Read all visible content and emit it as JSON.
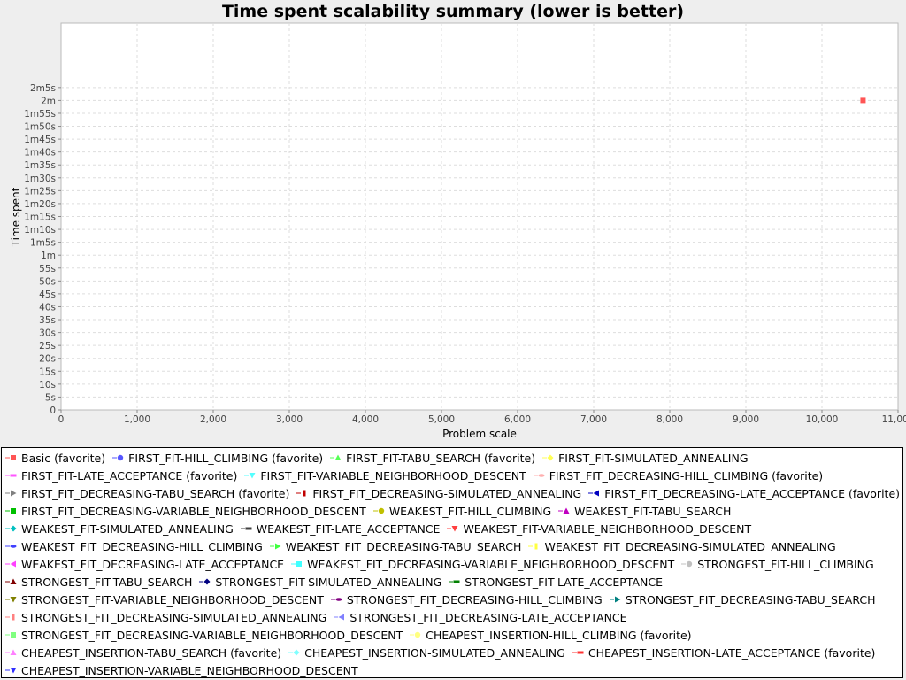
{
  "chart_data": {
    "type": "scatter",
    "title": "Time spent scalability summary (lower is better)",
    "xlabel": "Problem scale",
    "ylabel": "Time spent",
    "xlim": [
      0,
      11000
    ],
    "ylim": [
      0,
      150
    ],
    "x_ticks": [
      {
        "v": 0,
        "label": "0"
      },
      {
        "v": 1000,
        "label": "1,000"
      },
      {
        "v": 2000,
        "label": "2,000"
      },
      {
        "v": 3000,
        "label": "3,000"
      },
      {
        "v": 4000,
        "label": "4,000"
      },
      {
        "v": 5000,
        "label": "5,000"
      },
      {
        "v": 6000,
        "label": "6,000"
      },
      {
        "v": 7000,
        "label": "7,000"
      },
      {
        "v": 8000,
        "label": "8,000"
      },
      {
        "v": 9000,
        "label": "9,000"
      },
      {
        "v": 10000,
        "label": "10,000"
      },
      {
        "v": 11000,
        "label": "11,000"
      }
    ],
    "y_ticks": [
      {
        "v": 0,
        "label": "0"
      },
      {
        "v": 5,
        "label": "5s"
      },
      {
        "v": 10,
        "label": "10s"
      },
      {
        "v": 15,
        "label": "15s"
      },
      {
        "v": 20,
        "label": "20s"
      },
      {
        "v": 25,
        "label": "25s"
      },
      {
        "v": 30,
        "label": "30s"
      },
      {
        "v": 35,
        "label": "35s"
      },
      {
        "v": 40,
        "label": "40s"
      },
      {
        "v": 45,
        "label": "45s"
      },
      {
        "v": 50,
        "label": "50s"
      },
      {
        "v": 55,
        "label": "55s"
      },
      {
        "v": 60,
        "label": "1m"
      },
      {
        "v": 65,
        "label": "1m5s"
      },
      {
        "v": 70,
        "label": "1m10s"
      },
      {
        "v": 75,
        "label": "1m15s"
      },
      {
        "v": 80,
        "label": "1m20s"
      },
      {
        "v": 85,
        "label": "1m25s"
      },
      {
        "v": 90,
        "label": "1m30s"
      },
      {
        "v": 95,
        "label": "1m35s"
      },
      {
        "v": 100,
        "label": "1m40s"
      },
      {
        "v": 105,
        "label": "1m45s"
      },
      {
        "v": 110,
        "label": "1m50s"
      },
      {
        "v": 115,
        "label": "1m55s"
      },
      {
        "v": 120,
        "label": "2m"
      },
      {
        "v": 125,
        "label": "2m5s"
      }
    ],
    "grid": true,
    "legend_position": "bottom",
    "series": [
      {
        "name": "Basic (favorite)",
        "color": "#ff5555",
        "marker": "square",
        "points": [
          {
            "x": 10540,
            "y": 120
          }
        ]
      },
      {
        "name": "FIRST_FIT-HILL_CLIMBING (favorite)",
        "color": "#5555ff",
        "marker": "circle",
        "points": []
      },
      {
        "name": "FIRST_FIT-TABU_SEARCH (favorite)",
        "color": "#55ff55",
        "marker": "triangle-up",
        "points": []
      },
      {
        "name": "FIRST_FIT-SIMULATED_ANNEALING",
        "color": "#ffff55",
        "marker": "diamond",
        "points": []
      },
      {
        "name": "FIRST_FIT-LATE_ACCEPTANCE (favorite)",
        "color": "#ff55ff",
        "marker": "rect-h",
        "points": []
      },
      {
        "name": "FIRST_FIT-VARIABLE_NEIGHBORHOOD_DESCENT",
        "color": "#55ffff",
        "marker": "triangle-down",
        "points": []
      },
      {
        "name": "FIRST_FIT_DECREASING-HILL_CLIMBING (favorite)",
        "color": "#ffafaf",
        "marker": "ellipse-h",
        "points": []
      },
      {
        "name": "FIRST_FIT_DECREASING-TABU_SEARCH (favorite)",
        "color": "#808080",
        "marker": "triangle-right",
        "points": []
      },
      {
        "name": "FIRST_FIT_DECREASING-SIMULATED_ANNEALING",
        "color": "#c00000",
        "marker": "rect-v",
        "points": []
      },
      {
        "name": "FIRST_FIT_DECREASING-LATE_ACCEPTANCE (favorite)",
        "color": "#0000c0",
        "marker": "triangle-left",
        "points": []
      },
      {
        "name": "FIRST_FIT_DECREASING-VARIABLE_NEIGHBORHOOD_DESCENT",
        "color": "#00c000",
        "marker": "square",
        "points": []
      },
      {
        "name": "WEAKEST_FIT-HILL_CLIMBING",
        "color": "#c0c000",
        "marker": "circle",
        "points": []
      },
      {
        "name": "WEAKEST_FIT-TABU_SEARCH",
        "color": "#c000c0",
        "marker": "triangle-up",
        "points": []
      },
      {
        "name": "WEAKEST_FIT-SIMULATED_ANNEALING",
        "color": "#00c0c0",
        "marker": "diamond",
        "points": []
      },
      {
        "name": "WEAKEST_FIT-LATE_ACCEPTANCE",
        "color": "#404040",
        "marker": "rect-h",
        "points": []
      },
      {
        "name": "WEAKEST_FIT-VARIABLE_NEIGHBORHOOD_DESCENT",
        "color": "#ff4040",
        "marker": "triangle-down",
        "points": []
      },
      {
        "name": "WEAKEST_FIT_DECREASING-HILL_CLIMBING",
        "color": "#4040ff",
        "marker": "ellipse-h",
        "points": []
      },
      {
        "name": "WEAKEST_FIT_DECREASING-TABU_SEARCH",
        "color": "#40ff40",
        "marker": "triangle-right",
        "points": []
      },
      {
        "name": "WEAKEST_FIT_DECREASING-SIMULATED_ANNEALING",
        "color": "#ffff40",
        "marker": "rect-v",
        "points": []
      },
      {
        "name": "WEAKEST_FIT_DECREASING-LATE_ACCEPTANCE",
        "color": "#ff40ff",
        "marker": "triangle-left",
        "points": []
      },
      {
        "name": "WEAKEST_FIT_DECREASING-VARIABLE_NEIGHBORHOOD_DESCENT",
        "color": "#40ffff",
        "marker": "square",
        "points": []
      },
      {
        "name": "STRONGEST_FIT-HILL_CLIMBING",
        "color": "#c0c0c0",
        "marker": "circle",
        "points": []
      },
      {
        "name": "STRONGEST_FIT-TABU_SEARCH",
        "color": "#800000",
        "marker": "triangle-up",
        "points": []
      },
      {
        "name": "STRONGEST_FIT-SIMULATED_ANNEALING",
        "color": "#000080",
        "marker": "diamond",
        "points": []
      },
      {
        "name": "STRONGEST_FIT-LATE_ACCEPTANCE",
        "color": "#008000",
        "marker": "rect-h",
        "points": []
      },
      {
        "name": "STRONGEST_FIT-VARIABLE_NEIGHBORHOOD_DESCENT",
        "color": "#808000",
        "marker": "triangle-down",
        "points": []
      },
      {
        "name": "STRONGEST_FIT_DECREASING-HILL_CLIMBING",
        "color": "#800080",
        "marker": "ellipse-h",
        "points": []
      },
      {
        "name": "STRONGEST_FIT_DECREASING-TABU_SEARCH",
        "color": "#008080",
        "marker": "triangle-right",
        "points": []
      },
      {
        "name": "STRONGEST_FIT_DECREASING-SIMULATED_ANNEALING",
        "color": "#ff8080",
        "marker": "rect-v",
        "points": []
      },
      {
        "name": "STRONGEST_FIT_DECREASING-LATE_ACCEPTANCE",
        "color": "#8080ff",
        "marker": "triangle-left",
        "points": []
      },
      {
        "name": "STRONGEST_FIT_DECREASING-VARIABLE_NEIGHBORHOOD_DESCENT",
        "color": "#80ff80",
        "marker": "square",
        "points": []
      },
      {
        "name": "CHEAPEST_INSERTION-HILL_CLIMBING (favorite)",
        "color": "#ffff80",
        "marker": "circle",
        "points": []
      },
      {
        "name": "CHEAPEST_INSERTION-TABU_SEARCH (favorite)",
        "color": "#ff80ff",
        "marker": "triangle-up",
        "points": []
      },
      {
        "name": "CHEAPEST_INSERTION-SIMULATED_ANNEALING",
        "color": "#80ffff",
        "marker": "diamond",
        "points": []
      },
      {
        "name": "CHEAPEST_INSERTION-LATE_ACCEPTANCE (favorite)",
        "color": "#ff3030",
        "marker": "rect-h",
        "points": []
      },
      {
        "name": "CHEAPEST_INSERTION-VARIABLE_NEIGHBORHOOD_DESCENT",
        "color": "#3030ff",
        "marker": "triangle-down",
        "points": []
      }
    ]
  }
}
